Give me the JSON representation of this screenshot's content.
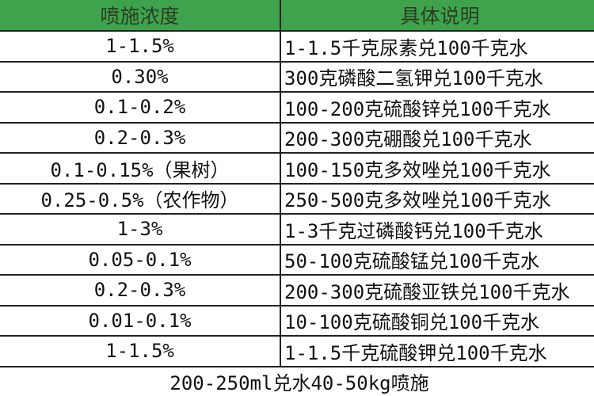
{
  "header": {
    "col1": "喷施浓度",
    "col2": "具体说明",
    "color": "#3ea34c"
  },
  "rows": [
    {
      "conc": "1-1.5%",
      "desc": "1-1.5千克尿素兑100千克水"
    },
    {
      "conc": "0.30%",
      "desc": "300克磷酸二氢钾兑100千克水"
    },
    {
      "conc": "0.1-0.2%",
      "desc": "100-200克硫酸锌兑100千克水"
    },
    {
      "conc": "0.2-0.3%",
      "desc": "200-300克硼酸兑100千克水"
    },
    {
      "conc": "0.1-0.15%（果树）",
      "desc": "100-150克多效唑兑100千克水"
    },
    {
      "conc": "0.25-0.5%（农作物）",
      "desc": "250-500克多效唑兑100千克水"
    },
    {
      "conc": "1-3%",
      "desc": "1-3千克过磷酸钙兑100千克水"
    },
    {
      "conc": "0.05-0.1%",
      "desc": "50-100克硫酸锰兑100千克水"
    },
    {
      "conc": "0.2-0.3%",
      "desc": "200-300克硫酸亚铁兑100千克水"
    },
    {
      "conc": "0.01-0.1%",
      "desc": "10-100克硫酸铜兑100千克水"
    },
    {
      "conc": "1-1.5%",
      "desc": "1-1.5千克硫酸钾兑100千克水"
    }
  ],
  "footer": "200-250ml兑水40-50kg喷施"
}
